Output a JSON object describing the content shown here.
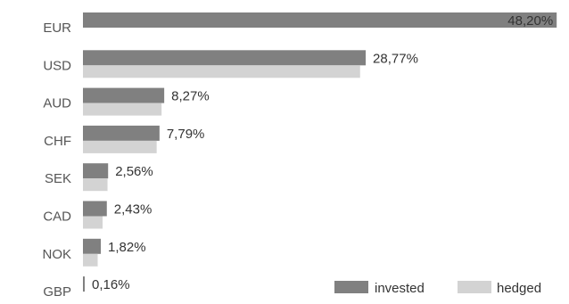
{
  "chart_data": {
    "type": "bar",
    "orientation": "horizontal",
    "categories": [
      "EUR",
      "USD",
      "AUD",
      "CHF",
      "SEK",
      "CAD",
      "NOK",
      "GBP"
    ],
    "series": [
      {
        "name": "invested",
        "values": [
          48.2,
          28.77,
          8.27,
          7.79,
          2.56,
          2.43,
          1.82,
          0.16
        ]
      },
      {
        "name": "hedged",
        "values": [
          0,
          28.2,
          8.0,
          7.5,
          2.5,
          2.0,
          1.5,
          0
        ]
      }
    ],
    "value_labels": [
      "48,20%",
      "28,77%",
      "8,27%",
      "7,79%",
      "2,56%",
      "2,43%",
      "1,82%",
      "0,16%"
    ],
    "xlim": [
      0,
      49
    ],
    "grid": false,
    "legend_position": "bottom-right"
  },
  "colors": {
    "invested": "#808080",
    "hedged": "#d3d3d3",
    "label_text": "#555555",
    "value_text": "#333333"
  }
}
